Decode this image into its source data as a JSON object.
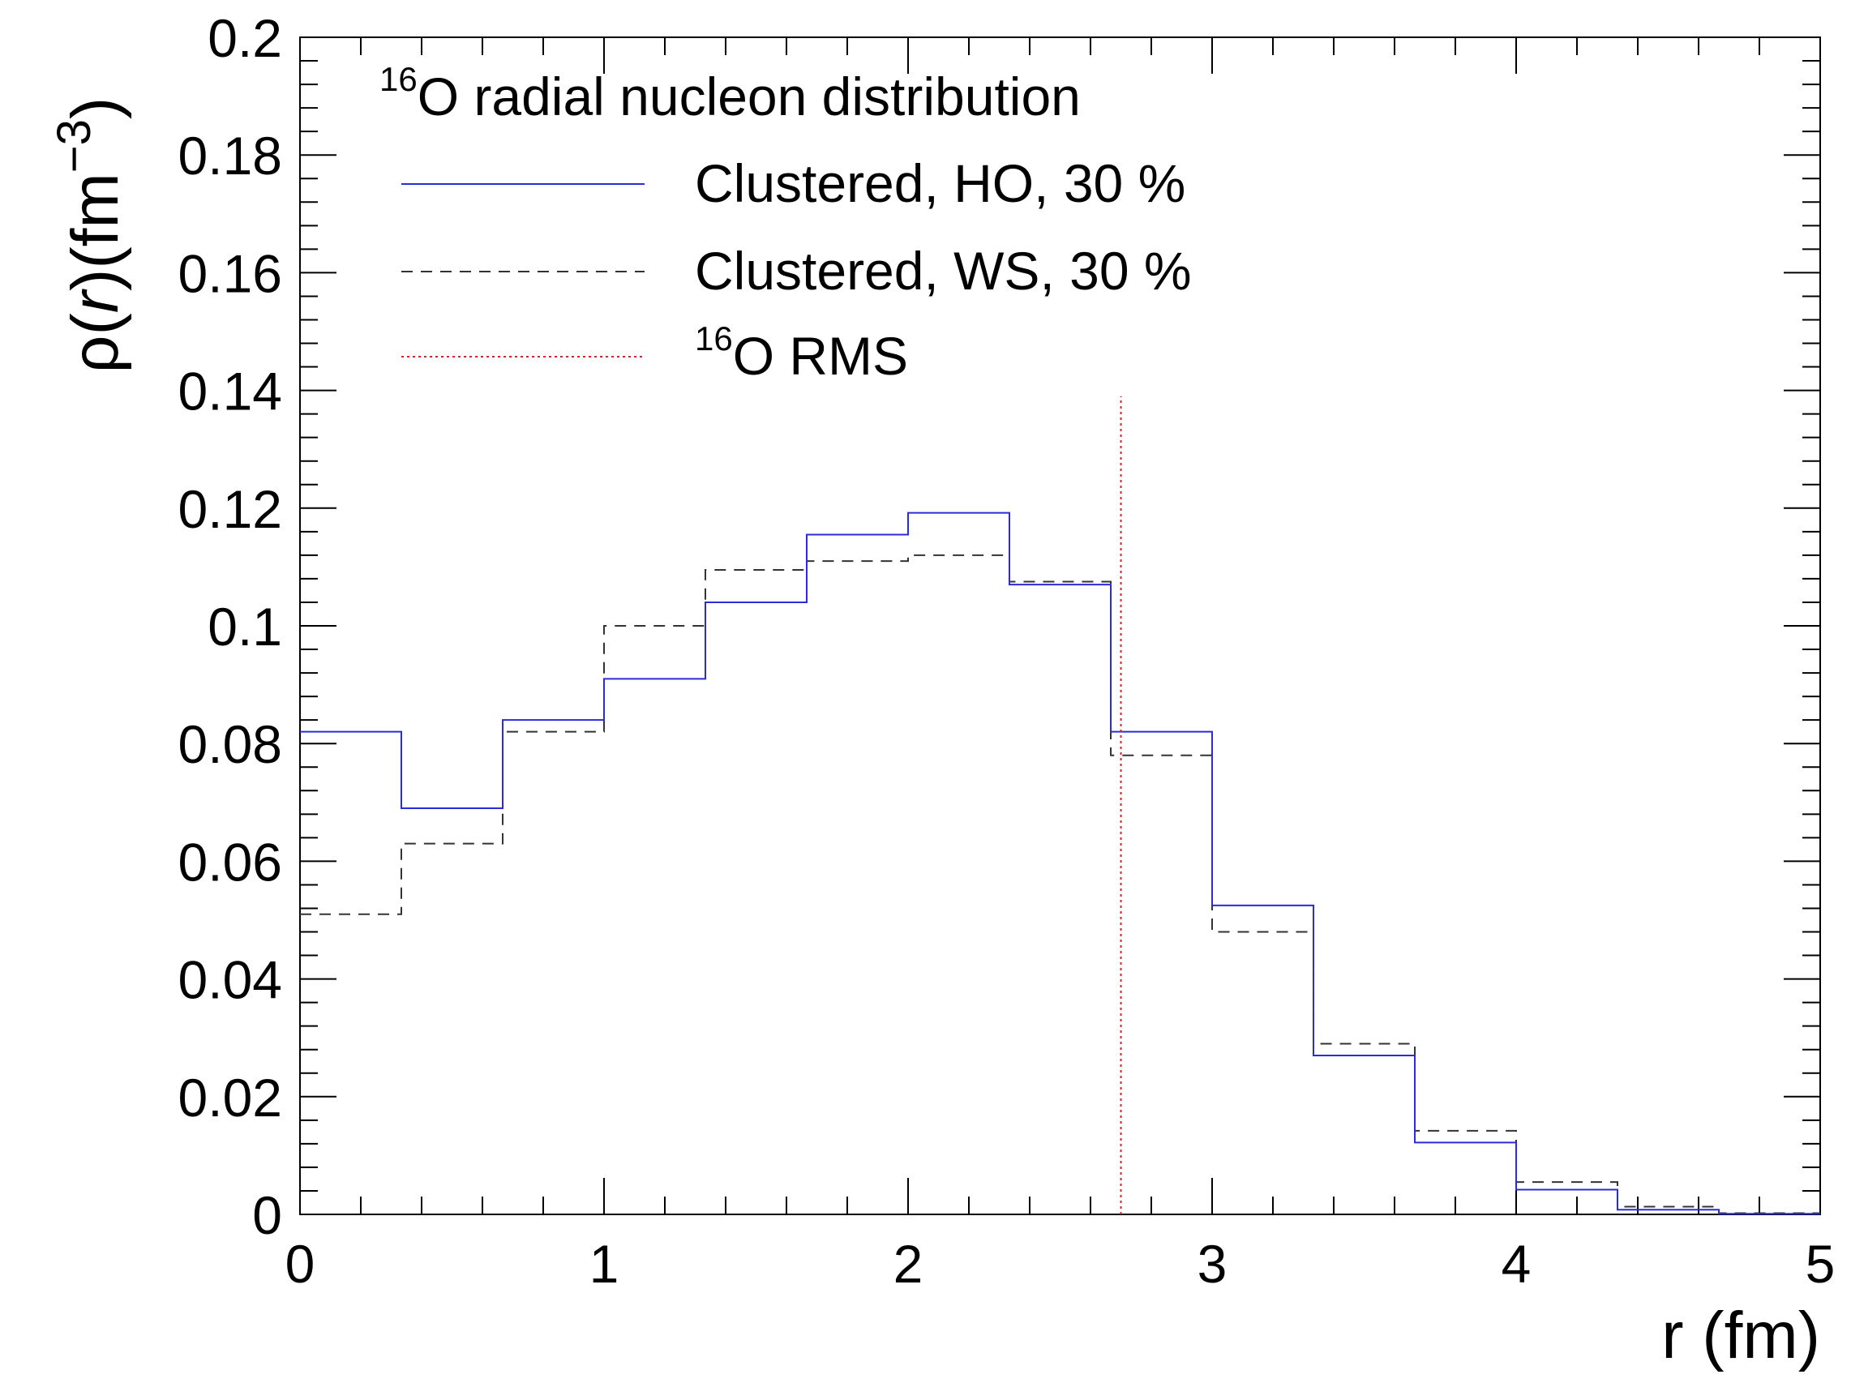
{
  "chart_data": {
    "type": "line",
    "style": "step-histogram",
    "xlabel": "r (fm)",
    "ylabel": {
      "rho": "ρ(",
      "r": "r",
      "unit_open": ")(fm",
      "exponent": "−3",
      "close": ")"
    },
    "xlim": [
      0,
      5
    ],
    "ylim": [
      0,
      0.2
    ],
    "x_ticks": [
      "0",
      "1",
      "2",
      "3",
      "4",
      "5"
    ],
    "y_ticks": [
      "0",
      "0.02",
      "0.04",
      "0.06",
      "0.08",
      "0.1",
      "0.12",
      "0.14",
      "0.16",
      "0.18",
      "0.2"
    ],
    "bin_edges": [
      0,
      0.3333,
      0.6667,
      1.0,
      1.3333,
      1.6667,
      2.0,
      2.3333,
      2.6667,
      3.0,
      3.3333,
      3.6667,
      4.0,
      4.3333,
      4.6667,
      5.0
    ],
    "series": [
      {
        "name": "Clustered, HO, 30 %",
        "color": "#2b2bd9",
        "dash": "solid",
        "values": [
          0.082,
          0.069,
          0.084,
          0.091,
          0.104,
          0.1155,
          0.1192,
          0.107,
          0.082,
          0.0525,
          0.027,
          0.0122,
          0.0042,
          0.0008,
          0.0001
        ]
      },
      {
        "name": "Clustered, WS, 30 %",
        "color": "#333333",
        "dash": "dashed",
        "values": [
          0.051,
          0.063,
          0.082,
          0.1,
          0.1095,
          0.111,
          0.112,
          0.1075,
          0.078,
          0.048,
          0.029,
          0.0142,
          0.0055,
          0.0013,
          0.0002
        ]
      }
    ],
    "rms_line": {
      "x": 2.7,
      "y_top": 0.139,
      "color": "#e02020",
      "dash": "dotted"
    },
    "legend": {
      "title_sup": "16",
      "title": "O radial nucleon distribution",
      "entries": [
        {
          "label": "Clustered, HO, 30 %",
          "color": "#2b2bd9",
          "dash": "solid"
        },
        {
          "label": "Clustered, WS, 30 %",
          "color": "#333333",
          "dash": "dashed"
        },
        {
          "label_sup": "16",
          "label": "O RMS",
          "color": "#e02020",
          "dash": "dotted"
        }
      ],
      "position": "top-left"
    }
  }
}
